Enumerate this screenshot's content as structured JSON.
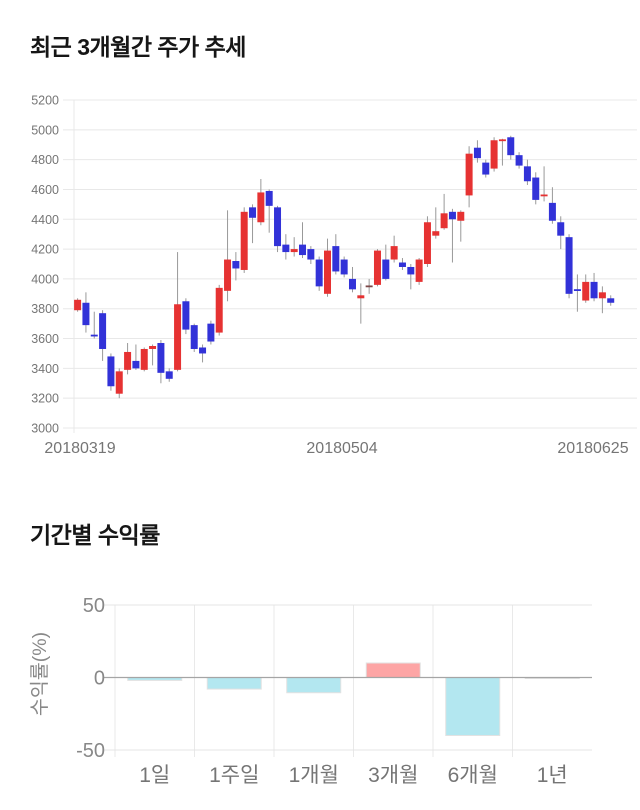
{
  "page": {
    "background": "#ffffff"
  },
  "chart_data": [
    {
      "type": "candlestick",
      "title": "최근 3개월간 주가 추세",
      "x_tick_labels": [
        "20180319",
        "20180504",
        "20180625"
      ],
      "y_ticks": [
        5200,
        5000,
        4800,
        4600,
        4400,
        4200,
        4000,
        3800,
        3600,
        3400,
        3200,
        3000
      ],
      "ylim": [
        3000,
        5200
      ],
      "grid": true,
      "legend": "none",
      "up_color": "#e63232",
      "down_color": "#3232d8",
      "doji_color": "#7d4848",
      "wick_color": "#999999",
      "grid_color": "#e8e8e8",
      "tick_label_color": "#757575",
      "candles_ohlc": [
        [
          3790,
          3870,
          3780,
          3860
        ],
        [
          3840,
          3910,
          3640,
          3690
        ],
        [
          3620,
          3780,
          3600,
          3610
        ],
        [
          3770,
          3790,
          3450,
          3530
        ],
        [
          3480,
          3500,
          3250,
          3280
        ],
        [
          3230,
          3400,
          3200,
          3380
        ],
        [
          3390,
          3570,
          3360,
          3510
        ],
        [
          3450,
          3560,
          3390,
          3400
        ],
        [
          3390,
          3540,
          3380,
          3530
        ],
        [
          3530,
          3560,
          3420,
          3550
        ],
        [
          3570,
          3590,
          3300,
          3370
        ],
        [
          3380,
          3400,
          3310,
          3330
        ],
        [
          3390,
          4180,
          3380,
          3830
        ],
        [
          3850,
          3870,
          3630,
          3660
        ],
        [
          3690,
          3700,
          3510,
          3530
        ],
        [
          3540,
          3560,
          3440,
          3500
        ],
        [
          3700,
          3720,
          3560,
          3580
        ],
        [
          3640,
          3960,
          3620,
          3940
        ],
        [
          3920,
          4460,
          3850,
          4130
        ],
        [
          4120,
          4180,
          3990,
          4070
        ],
        [
          4060,
          4480,
          4040,
          4450
        ],
        [
          4480,
          4500,
          4240,
          4410
        ],
        [
          4380,
          4670,
          4360,
          4580
        ],
        [
          4590,
          4600,
          4310,
          4490
        ],
        [
          4480,
          4490,
          4180,
          4220
        ],
        [
          4230,
          4300,
          4130,
          4180
        ],
        [
          4180,
          4280,
          4150,
          4200
        ],
        [
          4230,
          4380,
          4140,
          4160
        ],
        [
          4200,
          4220,
          4100,
          4130
        ],
        [
          4130,
          4150,
          3920,
          3950
        ],
        [
          3900,
          4270,
          3880,
          4190
        ],
        [
          4220,
          4300,
          4030,
          4050
        ],
        [
          4130,
          4150,
          4010,
          4030
        ],
        [
          4000,
          4080,
          3910,
          3930
        ],
        [
          3870,
          3970,
          3700,
          3890
        ],
        [
          3950,
          4000,
          3900,
          3945,
          1
        ],
        [
          3960,
          4200,
          3950,
          4190
        ],
        [
          4130,
          4230,
          3990,
          4000
        ],
        [
          4130,
          4290,
          4110,
          4220
        ],
        [
          4110,
          4140,
          4060,
          4080
        ],
        [
          4080,
          4100,
          3930,
          4030
        ],
        [
          3980,
          4140,
          3960,
          4130
        ],
        [
          4100,
          4420,
          4080,
          4380
        ],
        [
          4290,
          4480,
          4270,
          4320
        ],
        [
          4340,
          4570,
          4330,
          4440
        ],
        [
          4450,
          4470,
          4110,
          4400
        ],
        [
          4390,
          4460,
          4250,
          4450
        ],
        [
          4560,
          4890,
          4480,
          4840
        ],
        [
          4880,
          4930,
          4780,
          4810
        ],
        [
          4780,
          4800,
          4680,
          4700
        ],
        [
          4740,
          4950,
          4720,
          4930
        ],
        [
          4920,
          4940,
          4760,
          4930
        ],
        [
          4950,
          4960,
          4800,
          4830
        ],
        [
          4830,
          4850,
          4740,
          4760
        ],
        [
          4755,
          4800,
          4630,
          4655
        ],
        [
          4680,
          4715,
          4500,
          4530
        ],
        [
          4550,
          4755,
          4520,
          4560
        ],
        [
          4510,
          4615,
          4370,
          4390
        ],
        [
          4380,
          4420,
          4200,
          4290
        ],
        [
          4280,
          4300,
          3870,
          3900
        ],
        [
          3925,
          4030,
          3780,
          3915
        ],
        [
          3855,
          4030,
          3840,
          3980
        ],
        [
          3980,
          4040,
          3850,
          3870
        ],
        [
          3870,
          3950,
          3770,
          3910
        ],
        [
          3870,
          3890,
          3820,
          3840
        ]
      ]
    },
    {
      "type": "bar",
      "title": "기간별 수익률",
      "categories": [
        "1일",
        "1주일",
        "1개월",
        "3개월",
        "6개월",
        "1년"
      ],
      "values": [
        -2,
        -8,
        -10.5,
        10,
        -40,
        -0.7
      ],
      "ylabel": "수익률(%)",
      "y_ticks": [
        50,
        0,
        -50
      ],
      "ylim": [
        -50,
        50
      ],
      "grid": true,
      "legend": "none",
      "positive_color": "#fda5a5",
      "negative_color": "#b3e7f0",
      "bar_border_color": "#e2e2e2",
      "zero_line_color": "#a5a5a5",
      "grid_color": "#e9e9e9",
      "tick_label_color": "#888888",
      "category_label_color": "#757575"
    }
  ]
}
